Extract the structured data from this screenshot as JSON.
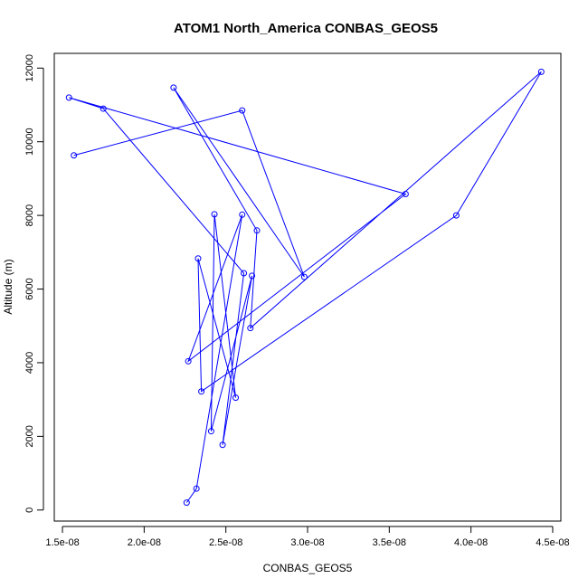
{
  "chart_data": {
    "type": "scatter",
    "title": "ATOM1 North_America CONBAS_GEOS5",
    "xlabel": "CONBAS_GEOS5",
    "ylabel": "Altitude (m)",
    "xlim": [
      1.45e-08,
      4.55e-08
    ],
    "ylim": [
      -300,
      12400
    ],
    "x_ticks": [
      1.5e-08,
      2e-08,
      2.5e-08,
      3e-08,
      3.5e-08,
      4e-08,
      4.5e-08
    ],
    "x_tick_labels": [
      "1.5e-08",
      "2.0e-08",
      "2.5e-08",
      "3.0e-08",
      "3.5e-08",
      "4.0e-08",
      "4.5e-08"
    ],
    "y_ticks": [
      0,
      2000,
      4000,
      6000,
      8000,
      10000,
      12000
    ],
    "y_tick_labels": [
      "0",
      "2000",
      "4000",
      "6000",
      "8000",
      "10000",
      "12000"
    ],
    "color": "#0000ff",
    "connected": true,
    "grid": false,
    "series": [
      {
        "x": [
          2.26e-08,
          2.32e-08,
          2.6e-08,
          2.27e-08,
          3.6e-08,
          1.54e-08,
          1.75e-08,
          2.61e-08,
          2.48e-08,
          2.66e-08,
          2.41e-08,
          2.43e-08,
          2.56e-08,
          2.33e-08,
          2.35e-08,
          3.91e-08,
          4.43e-08,
          2.65e-08,
          2.69e-08,
          2.18e-08,
          2.98e-08,
          2.6e-08,
          1.57e-08
        ],
        "y": [
          200,
          580,
          8020,
          4040,
          8580,
          11200,
          10900,
          6430,
          1770,
          6360,
          2140,
          8030,
          3050,
          6830,
          3220,
          8000,
          11900,
          4940,
          7590,
          11470,
          6330,
          10850,
          9630
        ]
      }
    ]
  }
}
